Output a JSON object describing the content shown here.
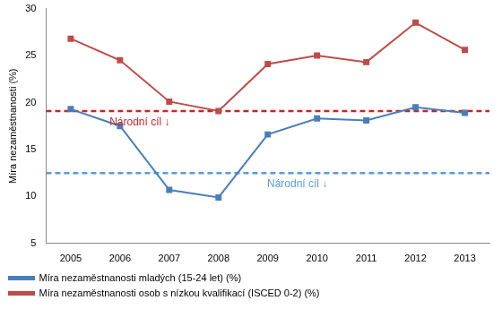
{
  "chart_data": {
    "type": "line",
    "y_label": "Míra nezaměstnanosti (%)",
    "categories": [
      "2005",
      "2006",
      "2007",
      "2008",
      "2009",
      "2010",
      "2011",
      "2012",
      "2013"
    ],
    "series": [
      {
        "name": "Míra nezaměstnanosti mladých (15-24 let) (%)",
        "color": "#4a7ebb",
        "marker": "square",
        "values": [
          19.3,
          17.5,
          10.7,
          9.9,
          16.6,
          18.3,
          18.1,
          19.5,
          18.9
        ]
      },
      {
        "name": "Míra nezaměstnanosti osob s nízkou kvalifikací (ISCED 0-2) (%)",
        "color": "#be4b48",
        "marker": "square",
        "values": [
          26.8,
          24.5,
          20.1,
          19.1,
          24.1,
          25.0,
          24.3,
          28.5,
          25.6
        ]
      }
    ],
    "targets": [
      {
        "label": "Národní cíl ↓",
        "value": 19.1,
        "color": "#c0282d",
        "line_style": "dashed"
      },
      {
        "label": "Národní cíl ↓",
        "value": 12.5,
        "color": "#5b9bd5",
        "line_style": "dashed"
      }
    ],
    "ylim": [
      5,
      30
    ],
    "yticks": [
      5,
      10,
      15,
      20,
      25,
      30
    ],
    "grid": false,
    "legend": "bottom"
  }
}
